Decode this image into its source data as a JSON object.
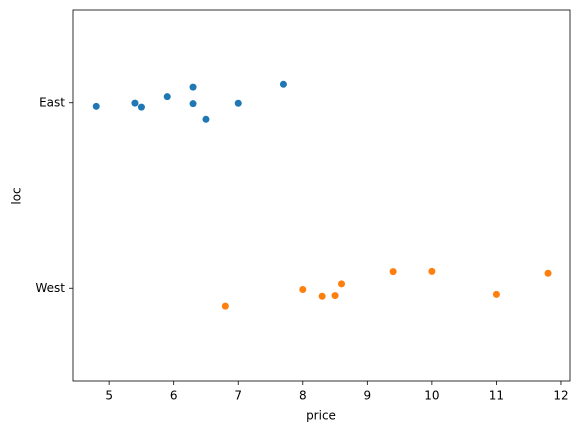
{
  "chart_data": {
    "type": "strip",
    "x_label": "price",
    "y_label": "loc",
    "categories": [
      "East",
      "West"
    ],
    "series": [
      {
        "name": "East",
        "color": "#1f77b4",
        "values": [
          4.8,
          5.4,
          5.5,
          5.9,
          6.3,
          6.3,
          6.5,
          7.0,
          7.7
        ]
      },
      {
        "name": "West",
        "color": "#ff7f0e",
        "values": [
          6.8,
          8.0,
          8.3,
          8.5,
          8.6,
          9.4,
          10.0,
          11.0,
          11.8
        ]
      }
    ],
    "xlim": [
      4.44,
      12.14
    ],
    "xticks": [
      5,
      6,
      7,
      8,
      9,
      10,
      11,
      12
    ]
  }
}
